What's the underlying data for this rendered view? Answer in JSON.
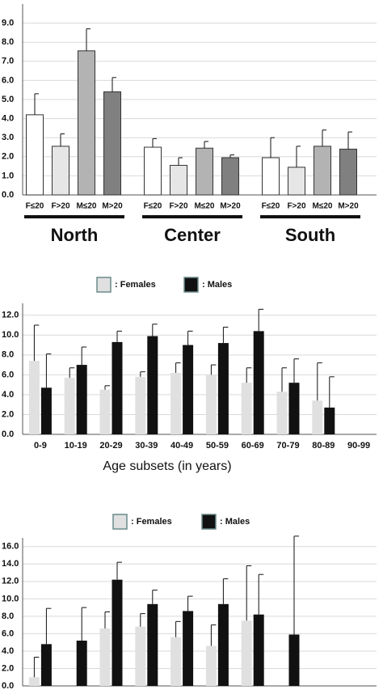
{
  "chart_data": [
    {
      "type": "bar",
      "categories": [
        "F≤20",
        "F>20",
        "M≤20",
        "M>20",
        "F≤20",
        "F>20",
        "M≤20",
        "M>20",
        "F≤20",
        "F>20",
        "M≤20",
        "M>20"
      ],
      "groups": [
        "North",
        "Center",
        "South"
      ],
      "values": [
        4.2,
        2.55,
        7.55,
        5.4,
        2.5,
        1.55,
        2.45,
        1.95,
        1.95,
        1.45,
        2.55,
        2.4
      ],
      "errors": [
        1.1,
        0.65,
        1.15,
        0.75,
        0.45,
        0.4,
        0.35,
        0.15,
        1.05,
        1.1,
        0.85,
        0.9
      ],
      "colors": [
        "#ffffff",
        "#e6e6e6",
        "#b3b3b3",
        "#808080",
        "#ffffff",
        "#e6e6e6",
        "#b3b3b3",
        "#808080",
        "#ffffff",
        "#e6e6e6",
        "#b3b3b3",
        "#808080"
      ],
      "ylim": [
        0,
        10
      ],
      "yticks": [
        {
          "value": 0,
          "label": "0.0"
        },
        {
          "value": 1,
          "label": "1.0"
        },
        {
          "value": 2,
          "label": "2.0"
        },
        {
          "value": 3,
          "label": "3.0"
        },
        {
          "value": 4,
          "label": "4.0"
        },
        {
          "value": 5,
          "label": "5.0"
        },
        {
          "value": 6,
          "label": "6.0"
        },
        {
          "value": 7,
          "label": "7.0"
        },
        {
          "value": 8,
          "label": "8.0"
        },
        {
          "value": 9,
          "label": "9.0"
        }
      ],
      "grid": true
    },
    {
      "type": "bar",
      "x_label": "Age subsets (in years)",
      "categories": [
        "0-9",
        "10-19",
        "20-29",
        "30-39",
        "40-49",
        "50-59",
        "60-69",
        "70-79",
        "80-89",
        "90-99"
      ],
      "series": [
        {
          "name": ": Females",
          "color": "#e0e0e0",
          "values": [
            7.4,
            5.7,
            4.5,
            5.8,
            6.2,
            6.0,
            5.2,
            4.3,
            3.4,
            null
          ],
          "errors": [
            3.6,
            1.0,
            0.4,
            0.5,
            1.0,
            1.0,
            1.5,
            2.4,
            3.8,
            null
          ]
        },
        {
          "name": ": Males",
          "color": "#111111",
          "values": [
            4.7,
            7.0,
            9.3,
            9.9,
            9.0,
            9.2,
            10.4,
            5.2,
            2.7,
            null
          ],
          "errors": [
            3.4,
            1.8,
            1.1,
            1.2,
            1.4,
            1.6,
            2.2,
            2.4,
            3.1,
            null
          ]
        }
      ],
      "ylim": [
        0,
        13.2
      ],
      "yticks": [
        {
          "value": 0,
          "label": "0.0"
        },
        {
          "value": 2,
          "label": "2.0"
        },
        {
          "value": 4,
          "label": "4.0"
        },
        {
          "value": 6,
          "label": "6.0"
        },
        {
          "value": 8,
          "label": "8.0"
        },
        {
          "value": 10,
          "label": "10.0"
        },
        {
          "value": 12,
          "label": "12.0"
        }
      ],
      "grid": true
    },
    {
      "type": "bar",
      "categories": [
        null,
        null,
        null,
        null,
        null,
        null,
        null,
        null,
        null,
        null
      ],
      "series": [
        {
          "name": ": Females",
          "color": "#e0e0e0",
          "values": [
            1.0,
            null,
            6.6,
            6.8,
            5.6,
            4.6,
            7.5,
            null,
            null,
            null
          ],
          "errors": [
            2.3,
            null,
            1.9,
            1.5,
            1.8,
            2.4,
            6.3,
            null,
            null,
            null
          ]
        },
        {
          "name": ": Males",
          "color": "#111111",
          "values": [
            4.8,
            5.2,
            12.2,
            9.4,
            8.6,
            9.4,
            8.2,
            5.9,
            null,
            null
          ],
          "errors": [
            4.1,
            3.8,
            2.0,
            1.6,
            1.7,
            2.9,
            4.6,
            11.3,
            null,
            null
          ]
        }
      ],
      "ylim": [
        0,
        17
      ],
      "yticks": [
        {
          "value": 0,
          "label": "0.0"
        },
        {
          "value": 2,
          "label": "2.0"
        },
        {
          "value": 4,
          "label": "4.0"
        },
        {
          "value": 6,
          "label": "6.0"
        },
        {
          "value": 8,
          "label": "8.0"
        },
        {
          "value": 10,
          "label": "10.0"
        },
        {
          "value": 12,
          "label": "12.0"
        },
        {
          "value": 14,
          "label": "14.0"
        },
        {
          "value": 16,
          "label": "16.0"
        }
      ],
      "grid": true
    }
  ]
}
